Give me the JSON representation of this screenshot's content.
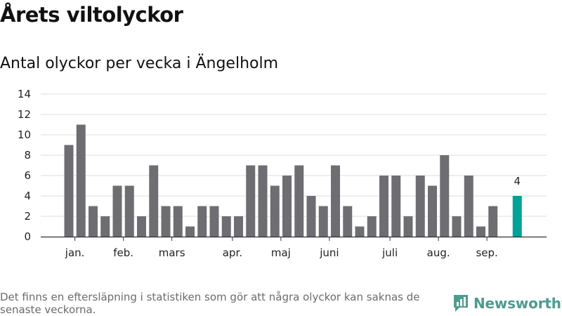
{
  "title": "Årets viltolyckor",
  "subtitle": "Antal olyckor per vecka i Ängelholm",
  "footnote": "Det finns en eftersläpning i statistiken som gör att några olyckor kan saknas de senaste veckorna.",
  "brand": {
    "name": "Newsworthy",
    "icon": "newsworthy-logo-icon"
  },
  "colors": {
    "bar": "#6e6d72",
    "highlight": "#00a298",
    "grid": "#dddddd",
    "axis": "#333333",
    "brand": "#4e9b8f"
  },
  "chart_data": {
    "type": "bar",
    "weeks": [
      1,
      2,
      3,
      4,
      5,
      6,
      7,
      8,
      9,
      10,
      11,
      12,
      13,
      14,
      15,
      16,
      17,
      18,
      19,
      20,
      21,
      22,
      23,
      24,
      25,
      26,
      27,
      28,
      29,
      30,
      31,
      32,
      33,
      34,
      35,
      36,
      37,
      38
    ],
    "values": [
      9,
      11,
      3,
      2,
      5,
      5,
      2,
      7,
      3,
      3,
      1,
      3,
      3,
      2,
      2,
      7,
      7,
      5,
      6,
      7,
      4,
      3,
      7,
      3,
      1,
      2,
      6,
      6,
      2,
      6,
      5,
      8,
      2,
      6,
      1,
      3,
      null,
      4
    ],
    "highlight_index": 37,
    "highlight_label": "4",
    "month_labels": [
      {
        "label": "jan.",
        "week": 1.5
      },
      {
        "label": "feb.",
        "week": 5.5
      },
      {
        "label": "mars",
        "week": 9.5
      },
      {
        "label": "apr.",
        "week": 14.5
      },
      {
        "label": "maj",
        "week": 18.5
      },
      {
        "label": "juni",
        "week": 22.5
      },
      {
        "label": "juli",
        "week": 27.5
      },
      {
        "label": "aug.",
        "week": 31.5
      },
      {
        "label": "sep.",
        "week": 35.5
      }
    ],
    "yticks": [
      0,
      2,
      4,
      6,
      8,
      10,
      12,
      14
    ],
    "ylim": [
      0,
      14
    ],
    "grid": true
  }
}
